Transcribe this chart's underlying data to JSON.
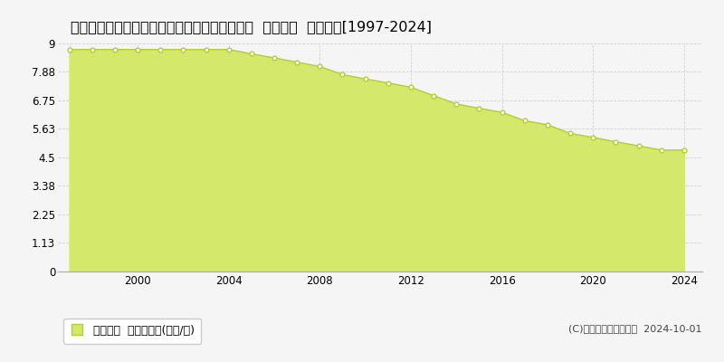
{
  "title": "島根県隠岐郡西ノ島町大字別府字後畑６６番１  基準地価  地価推移[1997-2024]",
  "years": [
    1997,
    1998,
    1999,
    2000,
    2001,
    2002,
    2003,
    2004,
    2005,
    2006,
    2007,
    2008,
    2009,
    2010,
    2011,
    2012,
    2013,
    2014,
    2015,
    2016,
    2017,
    2018,
    2019,
    2020,
    2021,
    2022,
    2023,
    2024
  ],
  "values": [
    8.76,
    8.76,
    8.76,
    8.76,
    8.76,
    8.76,
    8.76,
    8.76,
    8.59,
    8.43,
    8.26,
    8.09,
    7.77,
    7.6,
    7.44,
    7.27,
    6.94,
    6.61,
    6.44,
    6.28,
    5.95,
    5.79,
    5.45,
    5.29,
    5.12,
    4.96,
    4.79,
    4.79
  ],
  "fill_color": "#d4e96b",
  "line_color": "#b8cc30",
  "marker_facecolor": "#ffffff",
  "marker_edgecolor": "#b8cc30",
  "background_color": "#f5f5f5",
  "plot_bg_color": "#f5f5f5",
  "grid_color": "#cccccc",
  "yticks": [
    0,
    1.13,
    2.25,
    3.38,
    4.5,
    5.63,
    6.75,
    7.88,
    9
  ],
  "ytick_labels": [
    "0",
    "1.13",
    "2.25",
    "3.38",
    "4.5",
    "5.63",
    "6.75",
    "7.88",
    "9"
  ],
  "xticks": [
    1997,
    2000,
    2004,
    2008,
    2012,
    2016,
    2020,
    2024
  ],
  "xtick_labels": [
    "",
    "2000",
    "2004",
    "2008",
    "2012",
    "2016",
    "2020",
    "2024"
  ],
  "ylim": [
    0,
    9
  ],
  "xlim": [
    1996.5,
    2024.8
  ],
  "legend_label": "基準地価  平均坪単価(万円/坪)",
  "copyright_text": "(C)土地価格ドットコム  2024-10-01",
  "title_fontsize": 11.5,
  "axis_fontsize": 8.5,
  "legend_fontsize": 9,
  "copyright_fontsize": 8
}
